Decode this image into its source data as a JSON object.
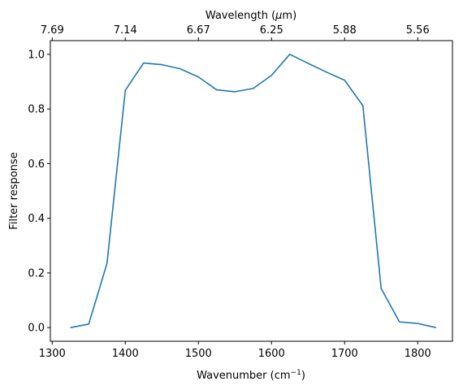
{
  "chart_data": {
    "type": "line",
    "xlabel": "Wavenumber (cm",
    "xlabel_sup": "−1",
    "xlabel_close": ")",
    "ylabel": "Filter response",
    "top_xlabel_pre": "Wavelength (",
    "top_xlabel_mu": "μ",
    "top_xlabel_post": "m)",
    "xlim": [
      1297.5,
      1847.5
    ],
    "ylim": [
      -0.05,
      1.05
    ],
    "x_ticks": [
      1300,
      1400,
      1500,
      1600,
      1700,
      1800
    ],
    "x_tick_labels": [
      "1300",
      "1400",
      "1500",
      "1600",
      "1700",
      "1800"
    ],
    "y_ticks": [
      0.0,
      0.2,
      0.4,
      0.6,
      0.8,
      1.0
    ],
    "y_tick_labels": [
      "0.0",
      "0.2",
      "0.4",
      "0.6",
      "0.8",
      "1.0"
    ],
    "top_x_ticks_wavenumber": [
      1300,
      1400,
      1500,
      1600,
      1700,
      1800
    ],
    "top_x_tick_labels": [
      "7.69",
      "7.14",
      "6.67",
      "6.25",
      "5.88",
      "5.56"
    ],
    "line_color": "#1f77b4",
    "grid": false,
    "series": [
      {
        "x": [
          1325,
          1350,
          1375,
          1400,
          1425,
          1450,
          1475,
          1500,
          1525,
          1550,
          1575,
          1600,
          1625,
          1650,
          1675,
          1700,
          1725,
          1750,
          1775,
          1800,
          1825
        ],
        "values": [
          0.0,
          0.013,
          0.235,
          0.868,
          0.968,
          0.962,
          0.947,
          0.917,
          0.87,
          0.863,
          0.875,
          0.923,
          1.0,
          0.967,
          0.935,
          0.905,
          0.812,
          0.143,
          0.021,
          0.015,
          0.0
        ]
      }
    ]
  }
}
